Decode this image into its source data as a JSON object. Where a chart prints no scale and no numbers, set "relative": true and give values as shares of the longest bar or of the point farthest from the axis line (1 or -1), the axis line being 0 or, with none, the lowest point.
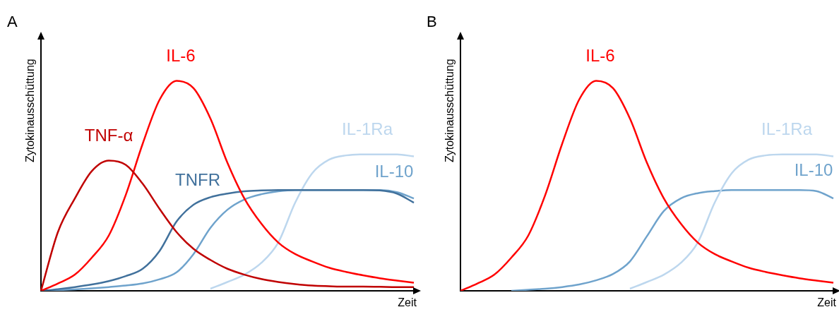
{
  "chart_data": [
    {
      "type": "line",
      "title": "A",
      "xlabel": "Zeit",
      "ylabel": "Zytokinausschüttung",
      "relative": true,
      "categories": [
        null,
        null,
        null,
        null,
        null,
        null,
        null,
        null,
        null,
        null,
        null,
        null,
        null,
        null,
        null,
        null,
        null,
        null,
        null,
        null,
        null,
        null,
        null
      ],
      "series": [
        {
          "name": "TNF-α",
          "color": "#c00000",
          "values": [
            0,
            0.28,
            0.44,
            0.57,
            0.62,
            0.6,
            0.51,
            0.39,
            0.28,
            0.2,
            0.147,
            0.105,
            0.077,
            0.056,
            0.042,
            0.032,
            0.025,
            0.022,
            0.02,
            0.02,
            0.019,
            0.018,
            0.018
          ]
        },
        {
          "name": "IL-6",
          "color": "#ff0000",
          "values": [
            0,
            0.035,
            0.077,
            0.158,
            0.263,
            0.456,
            0.7,
            0.91,
            1,
            0.965,
            0.82,
            0.61,
            0.44,
            0.32,
            0.23,
            0.175,
            0.14,
            0.11,
            0.09,
            0.074,
            0.06,
            0.049,
            0.039
          ]
        },
        {
          "name": "TNFR",
          "color": "#41719c",
          "values": [
            0,
            0.008,
            0.018,
            0.03,
            0.046,
            0.07,
            0.105,
            0.19,
            0.33,
            0.41,
            0.446,
            0.463,
            0.474,
            0.478,
            0.48,
            0.48,
            0.48,
            0.48,
            0.48,
            0.48,
            0.478,
            0.463,
            0.42
          ]
        },
        {
          "name": "IL-1Ra",
          "color": "#bdd7ee",
          "values": [
            null,
            null,
            null,
            null,
            null,
            null,
            null,
            null,
            null,
            null,
            0.01,
            0.042,
            0.077,
            0.133,
            0.23,
            0.42,
            0.56,
            0.625,
            0.645,
            0.65,
            0.65,
            0.65,
            0.64
          ]
        },
        {
          "name": "IL-10",
          "color": "#6fa3cc",
          "values": [
            0,
            0.003,
            0.007,
            0.012,
            0.018,
            0.025,
            0.035,
            0.055,
            0.088,
            0.175,
            0.3,
            0.386,
            0.435,
            0.46,
            0.474,
            0.48,
            0.48,
            0.48,
            0.48,
            0.48,
            0.48,
            0.47,
            0.44
          ]
        }
      ]
    },
    {
      "type": "line",
      "title": "B",
      "xlabel": "Zeit",
      "ylabel": "Zytokinausschüttung",
      "relative": true,
      "categories": [
        null,
        null,
        null,
        null,
        null,
        null,
        null,
        null,
        null,
        null,
        null,
        null,
        null,
        null,
        null,
        null,
        null,
        null,
        null,
        null,
        null,
        null,
        null
      ],
      "series": [
        {
          "name": "IL-6",
          "color": "#ff0000",
          "values": [
            0,
            0.035,
            0.077,
            0.158,
            0.263,
            0.456,
            0.7,
            0.91,
            1,
            0.965,
            0.82,
            0.61,
            0.44,
            0.32,
            0.23,
            0.175,
            0.14,
            0.11,
            0.09,
            0.074,
            0.06,
            0.049,
            0.039
          ]
        },
        {
          "name": "IL-1Ra",
          "color": "#bdd7ee",
          "values": [
            null,
            null,
            null,
            null,
            null,
            null,
            null,
            null,
            null,
            null,
            0.01,
            0.042,
            0.077,
            0.133,
            0.23,
            0.42,
            0.56,
            0.625,
            0.645,
            0.65,
            0.65,
            0.65,
            0.64
          ]
        },
        {
          "name": "IL-10",
          "color": "#6fa3cc",
          "values": [
            null,
            null,
            null,
            0,
            0.005,
            0.01,
            0.018,
            0.03,
            0.05,
            0.08,
            0.14,
            0.26,
            0.38,
            0.44,
            0.465,
            0.475,
            0.48,
            0.48,
            0.48,
            0.48,
            0.48,
            0.475,
            0.44
          ]
        }
      ]
    }
  ]
}
